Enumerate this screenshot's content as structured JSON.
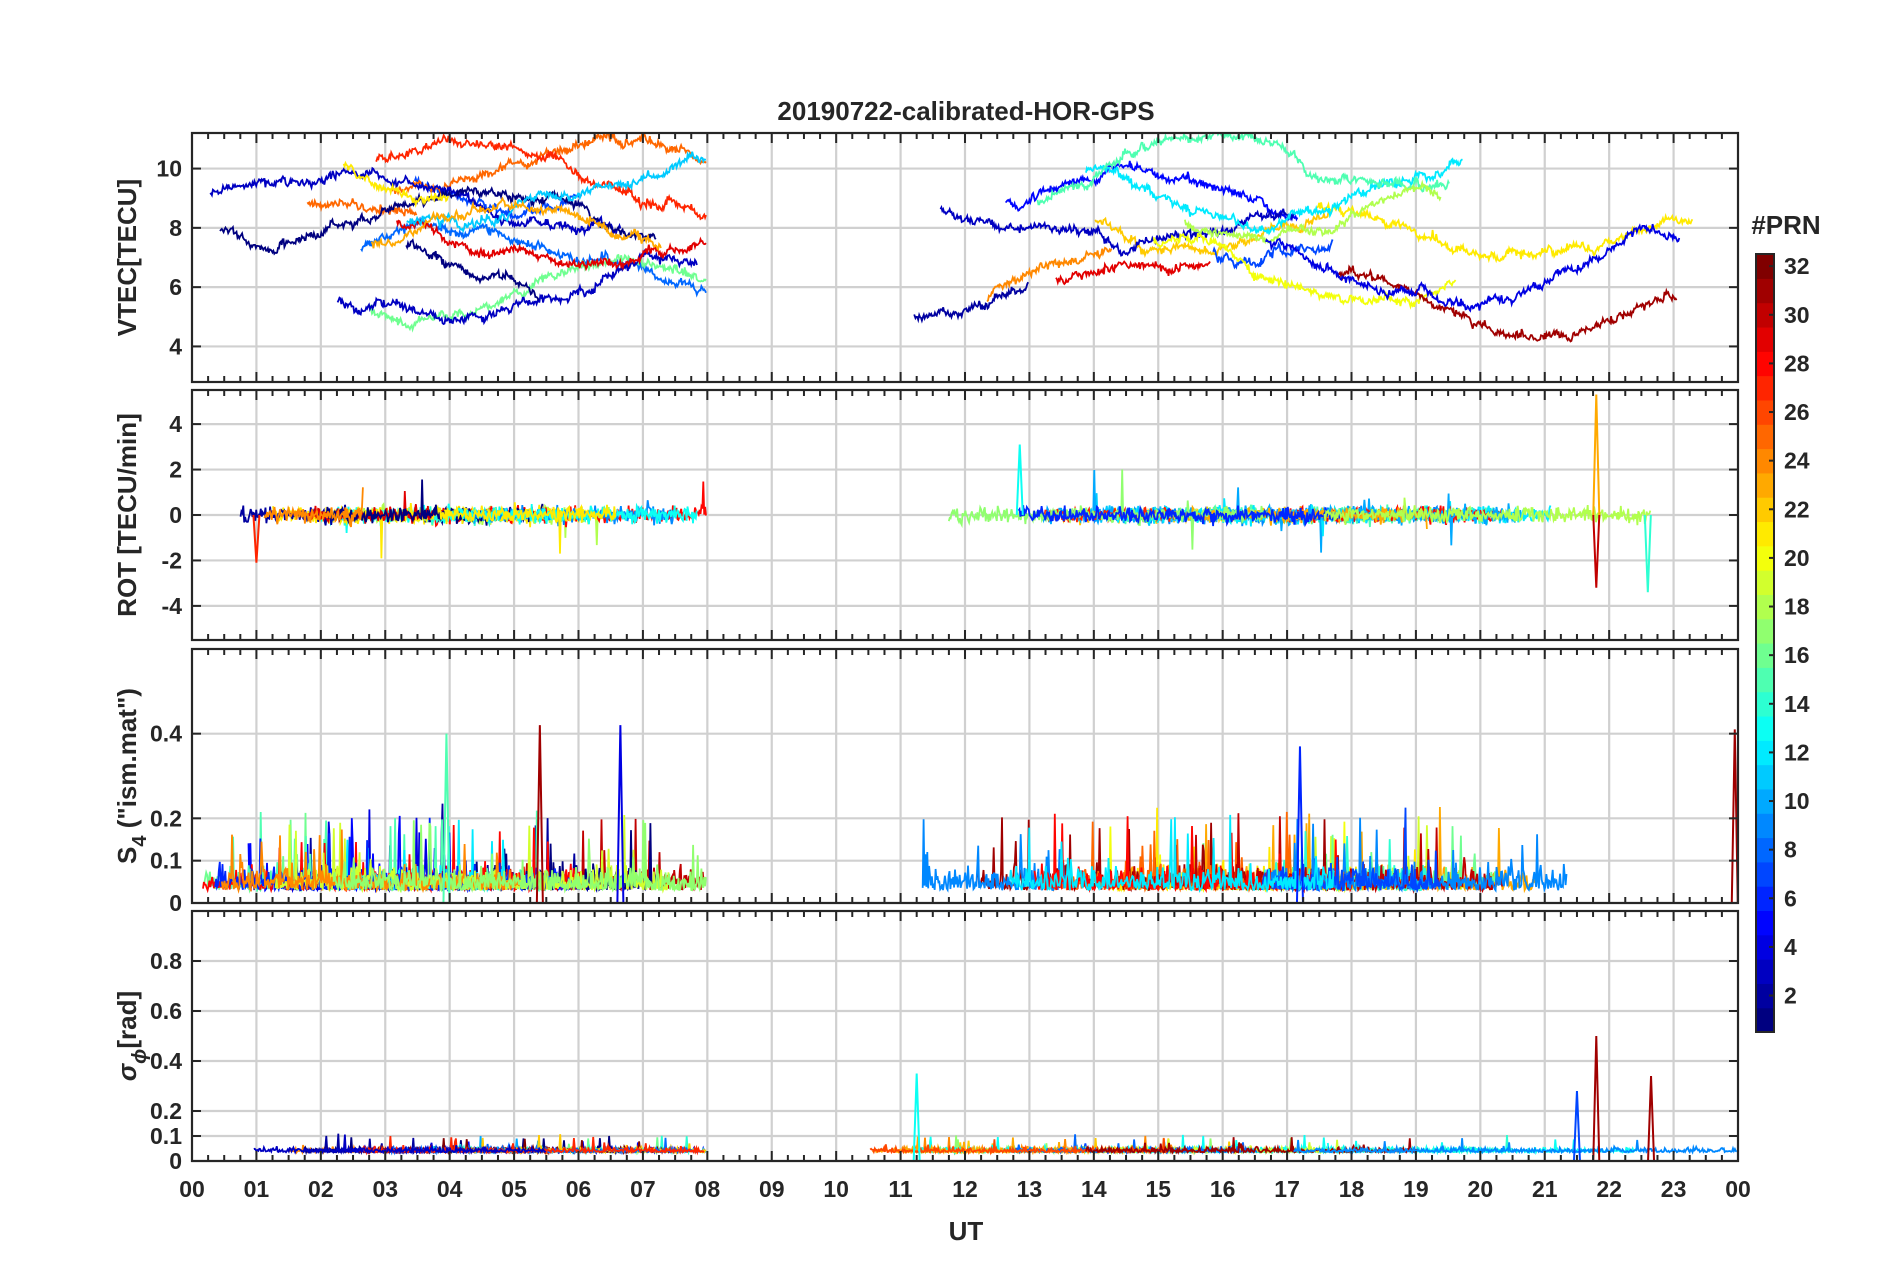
{
  "chart_data": {
    "type": "line",
    "title": "20190722-calibrated-HOR-GPS",
    "xlabel": "UT",
    "x_tick_labels": [
      "00",
      "01",
      "02",
      "03",
      "04",
      "05",
      "06",
      "07",
      "08",
      "09",
      "10",
      "11",
      "12",
      "13",
      "14",
      "15",
      "16",
      "17",
      "18",
      "19",
      "20",
      "21",
      "22",
      "23",
      "00"
    ],
    "x_range_hours": [
      0,
      24
    ],
    "data_gap_hours": [
      8.0,
      10.4
    ],
    "colorbar": {
      "label": "#PRN",
      "range": [
        1,
        32
      ],
      "tick_labels": [
        "2",
        "4",
        "6",
        "8",
        "10",
        "12",
        "14",
        "16",
        "18",
        "20",
        "22",
        "24",
        "26",
        "28",
        "30",
        "32"
      ]
    },
    "panels": [
      {
        "name": "vtec",
        "ylabel": "VTEC[TECU]",
        "ylim": [
          2.8,
          11.2
        ],
        "y_ticks": [
          4,
          6,
          8,
          10
        ],
        "y_tick_labels": [
          "4",
          "6",
          "8",
          "10"
        ],
        "typical_range": [
          5.5,
          10.5
        ]
      },
      {
        "name": "rot",
        "ylabel": "ROT [TECU/min]",
        "ylim": [
          -5.5,
          5.5
        ],
        "y_ticks": [
          -4,
          -2,
          0,
          2,
          4
        ],
        "y_tick_labels": [
          "-4",
          "-2",
          "0",
          "2",
          "4"
        ],
        "spikes": [
          {
            "t": 21.8,
            "value": 5.3,
            "prn": 23
          },
          {
            "t": 21.8,
            "value": -3.2,
            "prn": 30
          },
          {
            "t": 12.85,
            "value": 3.1,
            "prn": 13
          },
          {
            "t": 22.6,
            "value": -3.4,
            "prn": 14
          },
          {
            "t": 1.0,
            "value": -2.1,
            "prn": 27
          }
        ]
      },
      {
        "name": "s4",
        "ylabel_main": "S",
        "ylabel_sub": "4",
        "ylabel_rest": " (\"ism.mat\")",
        "ylim": [
          0,
          0.6
        ],
        "y_ticks": [
          0,
          0.1,
          0.2,
          0.4
        ],
        "y_tick_labels": [
          "0",
          "0.1",
          "0.2",
          "0.4"
        ],
        "spikes": [
          {
            "t": 5.4,
            "value": 0.42,
            "prn": 31
          },
          {
            "t": 6.65,
            "value": 0.42,
            "prn": 4
          },
          {
            "t": 23.95,
            "value": 0.41,
            "prn": 31
          },
          {
            "t": 17.2,
            "value": 0.37,
            "prn": 6
          },
          {
            "t": 3.95,
            "value": 0.4,
            "prn": 15
          }
        ]
      },
      {
        "name": "sigma_phi",
        "ylabel_main": "σ",
        "ylabel_sub": "ϕ",
        "ylabel_rest": "[rad]",
        "ylim": [
          0,
          1.0
        ],
        "y_ticks": [
          0,
          0.1,
          0.2,
          0.4,
          0.6,
          0.8
        ],
        "y_tick_labels": [
          "0",
          "0.1",
          "0.2",
          "0.4",
          "0.6",
          "0.8"
        ],
        "spikes": [
          {
            "t": 21.8,
            "value": 0.5,
            "prn": 31
          },
          {
            "t": 22.65,
            "value": 0.34,
            "prn": 31
          },
          {
            "t": 11.25,
            "value": 0.35,
            "prn": 13
          },
          {
            "t": 21.5,
            "value": 0.28,
            "prn": 7
          }
        ]
      }
    ]
  }
}
